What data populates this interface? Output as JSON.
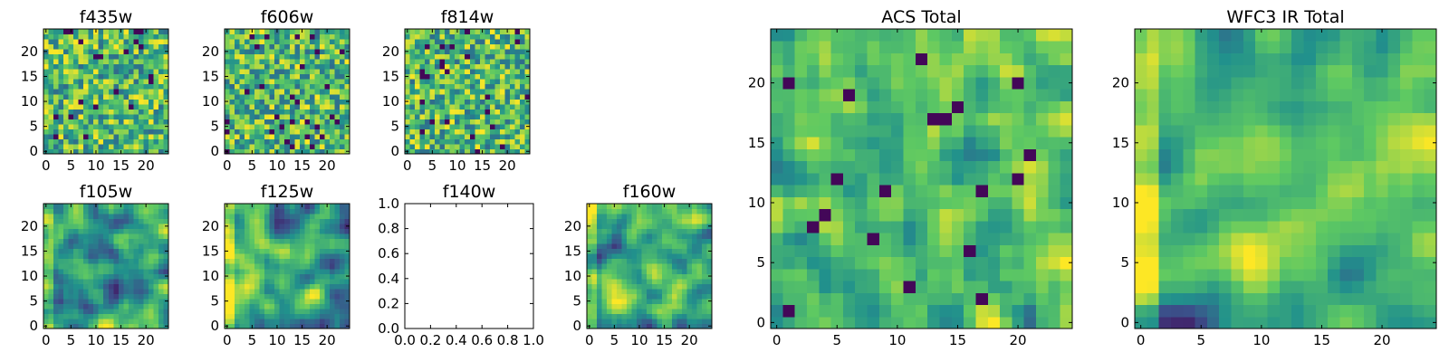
{
  "chart_data": [
    {
      "type": "heatmap",
      "title": "f435w",
      "variant": "noisy",
      "seed": 11,
      "xticks": [
        "0",
        "5",
        "10",
        "15",
        "20"
      ],
      "yticks": [
        "0",
        "5",
        "10",
        "15",
        "20"
      ],
      "xlim": [
        -0.5,
        24.5
      ],
      "ylim": [
        -0.5,
        24.5
      ]
    },
    {
      "type": "heatmap",
      "title": "f606w",
      "variant": "noisy",
      "seed": 23,
      "xticks": [
        "0",
        "5",
        "10",
        "15",
        "20"
      ],
      "yticks": [
        "0",
        "5",
        "10",
        "15",
        "20"
      ],
      "xlim": [
        -0.5,
        24.5
      ],
      "ylim": [
        -0.5,
        24.5
      ]
    },
    {
      "type": "heatmap",
      "title": "f814w",
      "variant": "noisy",
      "seed": 37,
      "xticks": [
        "0",
        "5",
        "10",
        "15",
        "20"
      ],
      "yticks": [
        "0",
        "5",
        "10",
        "15",
        "20"
      ],
      "xlim": [
        -0.5,
        24.5
      ],
      "ylim": [
        -0.5,
        24.5
      ]
    },
    {
      "type": "heatmap",
      "title": "f105w",
      "variant": "smooth",
      "seed": 41,
      "xticks": [
        "0",
        "5",
        "10",
        "15",
        "20"
      ],
      "yticks": [
        "0",
        "5",
        "10",
        "15",
        "20"
      ],
      "xlim": [
        -0.5,
        24.5
      ],
      "ylim": [
        -0.5,
        24.5
      ]
    },
    {
      "type": "heatmap",
      "title": "f125w",
      "variant": "smooth",
      "seed": 53,
      "xticks": [
        "0",
        "5",
        "10",
        "15",
        "20"
      ],
      "yticks": [
        "0",
        "5",
        "10",
        "15",
        "20"
      ],
      "xlim": [
        -0.5,
        24.5
      ],
      "ylim": [
        -0.5,
        24.5
      ]
    },
    {
      "type": "empty",
      "title": "f140w",
      "xticks": [
        "0.0",
        "0.2",
        "0.4",
        "0.6",
        "0.8",
        "1.0"
      ],
      "yticks": [
        "0.0",
        "0.2",
        "0.4",
        "0.6",
        "0.8",
        "1.0"
      ],
      "xlim": [
        0,
        1
      ],
      "ylim": [
        0,
        1
      ]
    },
    {
      "type": "heatmap",
      "title": "f160w",
      "variant": "smooth",
      "seed": 67,
      "xticks": [
        "0",
        "5",
        "10",
        "15",
        "20"
      ],
      "yticks": [
        "0",
        "5",
        "10",
        "15",
        "20"
      ],
      "xlim": [
        -0.5,
        24.5
      ],
      "ylim": [
        -0.5,
        24.5
      ]
    },
    {
      "type": "heatmap",
      "title": "ACS Total",
      "variant": "medium",
      "seed": 79,
      "xticks": [
        "0",
        "5",
        "10",
        "15",
        "20"
      ],
      "yticks": [
        "0",
        "5",
        "10",
        "15",
        "20"
      ],
      "xlim": [
        -0.5,
        24.5
      ],
      "ylim": [
        -0.5,
        24.5
      ]
    },
    {
      "type": "heatmap",
      "title": "WFC3 IR Total",
      "variant": "smooth",
      "seed": 97,
      "xticks": [
        "0",
        "5",
        "10",
        "15",
        "20"
      ],
      "yticks": [
        "0",
        "5",
        "10",
        "15",
        "20"
      ],
      "xlim": [
        -0.5,
        24.5
      ],
      "ylim": [
        -0.5,
        24.5
      ]
    }
  ],
  "colormap": [
    "#440154",
    "#3b528b",
    "#21918c",
    "#5ec962",
    "#fde725"
  ]
}
